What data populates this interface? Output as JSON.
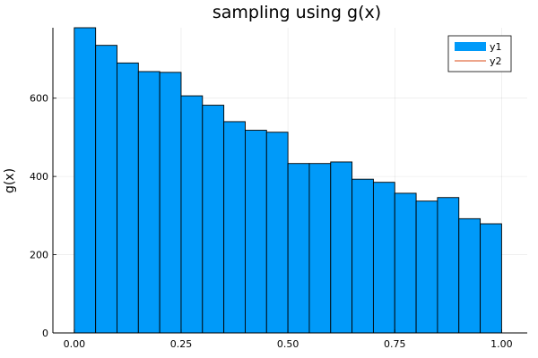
{
  "chart_data": {
    "type": "bar",
    "title": "sampling using g(x)",
    "xlabel": "",
    "ylabel": "g(x)",
    "bin_edges": [
      0.0,
      0.05,
      0.1,
      0.15,
      0.2,
      0.25,
      0.3,
      0.35,
      0.4,
      0.45,
      0.5,
      0.55,
      0.6,
      0.65,
      0.7,
      0.75,
      0.8,
      0.85,
      0.9,
      0.95,
      1.0
    ],
    "values": [
      780,
      735,
      690,
      668,
      666,
      606,
      582,
      540,
      518,
      513,
      433,
      433,
      437,
      393,
      385,
      357,
      337,
      346,
      292,
      279
    ],
    "xlim": [
      -0.05,
      1.06
    ],
    "ylim": [
      0,
      780
    ],
    "x_ticks": [
      0.0,
      0.25,
      0.5,
      0.75,
      1.0
    ],
    "x_tick_labels": [
      "0.00",
      "0.25",
      "0.50",
      "0.75",
      "1.00"
    ],
    "y_ticks": [
      0,
      200,
      400,
      600
    ],
    "y_tick_labels": [
      "0",
      "200",
      "400",
      "600"
    ],
    "grid": true,
    "legend": {
      "placement": "top-right",
      "entries": [
        {
          "label": "y1",
          "color": "#009af9",
          "kind": "bar"
        },
        {
          "label": "y2",
          "color": "#e26f46",
          "kind": "line"
        }
      ]
    },
    "colors": {
      "bar_fill": "#009af9",
      "bar_edge": "#000000"
    }
  }
}
